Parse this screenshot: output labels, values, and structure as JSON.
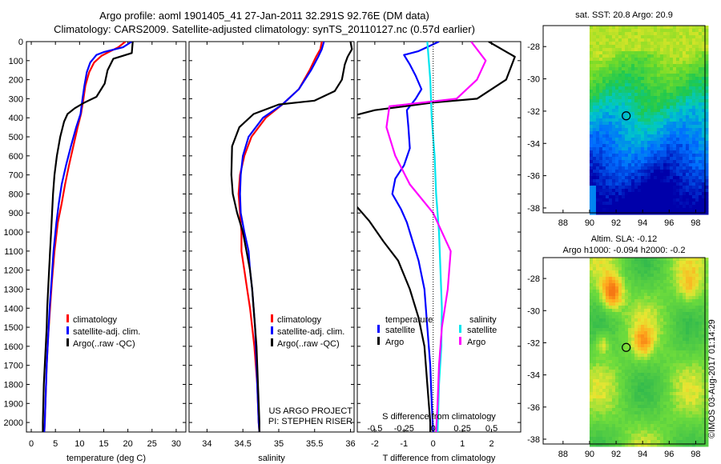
{
  "header": {
    "line1": "Argo profile: aoml 1901405_41 27-Jan-2011 32.291S 92.76E (DM data)",
    "line2": "Climatology: CARS2009. Satellite-adjusted climatology: synTS_20110127.nc (0.57d earlier)"
  },
  "colors": {
    "clim": "#ff0000",
    "sat": "#0000ff",
    "argo": "#000000",
    "sal_sat": "#00e5ee",
    "sal_argo": "#ff00ff"
  },
  "depth_axis": {
    "min": 0,
    "max": 2050,
    "ticks": [
      0,
      100,
      200,
      300,
      400,
      500,
      600,
      700,
      800,
      900,
      1000,
      1100,
      1200,
      1300,
      1400,
      1500,
      1600,
      1700,
      1800,
      1900,
      2000
    ]
  },
  "chart_data": [
    {
      "type": "line",
      "xlabel": "temperature (deg C)",
      "xlim": [
        -1,
        32
      ],
      "xticks": [
        0,
        5,
        10,
        15,
        20,
        25,
        30
      ],
      "legend": [
        "climatology",
        "satellite-adj. clim.",
        "Argo(..raw -QC)"
      ],
      "series": [
        {
          "name": "climatology",
          "color": "clim",
          "points": [
            [
              19.5,
              0
            ],
            [
              18,
              30
            ],
            [
              16,
              55
            ],
            [
              14.5,
              75
            ],
            [
              13,
              110
            ],
            [
              12,
              160
            ],
            [
              11.2,
              230
            ],
            [
              10.8,
              300
            ],
            [
              10.3,
              380
            ],
            [
              9.6,
              450
            ],
            [
              8.7,
              550
            ],
            [
              7.8,
              650
            ],
            [
              7,
              750
            ],
            [
              6.3,
              850
            ],
            [
              5.5,
              950
            ],
            [
              4.8,
              1100
            ],
            [
              4.3,
              1250
            ],
            [
              3.9,
              1400
            ],
            [
              3.5,
              1550
            ],
            [
              3.2,
              1700
            ],
            [
              3,
              1850
            ],
            [
              2.8,
              2000
            ],
            [
              2.7,
              2050
            ]
          ]
        },
        {
          "name": "satellite-adj. clim.",
          "color": "sat",
          "points": [
            [
              20.8,
              0
            ],
            [
              19,
              30
            ],
            [
              15,
              55
            ],
            [
              13.5,
              70
            ],
            [
              12.2,
              110
            ],
            [
              11.5,
              160
            ],
            [
              11,
              230
            ],
            [
              10.6,
              300
            ],
            [
              10.2,
              380
            ],
            [
              9.3,
              450
            ],
            [
              8.2,
              550
            ],
            [
              7.2,
              650
            ],
            [
              6.3,
              750
            ],
            [
              5.7,
              850
            ],
            [
              5.2,
              950
            ],
            [
              4.6,
              1100
            ],
            [
              4.2,
              1250
            ],
            [
              3.8,
              1400
            ],
            [
              3.5,
              1550
            ],
            [
              3.2,
              1700
            ],
            [
              3,
              1850
            ],
            [
              2.8,
              2000
            ],
            [
              2.7,
              2050
            ]
          ]
        },
        {
          "name": "Argo(..raw -QC)",
          "color": "argo",
          "points": [
            [
              21,
              0
            ],
            [
              20.8,
              60
            ],
            [
              17,
              90
            ],
            [
              15.8,
              150
            ],
            [
              15.2,
              220
            ],
            [
              13.5,
              290
            ],
            [
              11,
              320
            ],
            [
              9,
              350
            ],
            [
              7.5,
              380
            ],
            [
              6.8,
              420
            ],
            [
              6,
              500
            ],
            [
              5.3,
              600
            ],
            [
              4.8,
              700
            ],
            [
              4.5,
              800
            ],
            [
              4.3,
              900
            ],
            [
              4.1,
              1000
            ],
            [
              3.9,
              1100
            ],
            [
              3.7,
              1200
            ],
            [
              3.5,
              1300
            ],
            [
              3.3,
              1400
            ],
            [
              3.2,
              1500
            ],
            [
              3,
              1600
            ],
            [
              2.8,
              1700
            ],
            [
              2.6,
              1800
            ],
            [
              2.5,
              1900
            ],
            [
              2.4,
              2000
            ],
            [
              2.4,
              2050
            ]
          ]
        }
      ]
    },
    {
      "type": "line",
      "xlabel": "salinity",
      "xlim": [
        33.75,
        36.05
      ],
      "xticks": [
        34,
        34.5,
        35,
        35.5,
        36
      ],
      "xticklabels": [
        "34",
        "34.5",
        "35",
        "35.5",
        "36"
      ],
      "legend": [
        "climatology",
        "satellite-adj. clim.",
        "Argo(..raw -QC)"
      ],
      "series": [
        {
          "name": "climatology",
          "color": "clim",
          "points": [
            [
              35.6,
              0
            ],
            [
              35.58,
              40
            ],
            [
              35.52,
              80
            ],
            [
              35.43,
              150
            ],
            [
              35.28,
              250
            ],
            [
              35.05,
              330
            ],
            [
              34.82,
              400
            ],
            [
              34.62,
              500
            ],
            [
              34.52,
              600
            ],
            [
              34.46,
              700
            ],
            [
              34.44,
              800
            ],
            [
              34.46,
              900
            ],
            [
              34.48,
              1000
            ],
            [
              34.48,
              1100
            ],
            [
              34.52,
              1200
            ],
            [
              34.56,
              1300
            ],
            [
              34.6,
              1400
            ],
            [
              34.63,
              1500
            ],
            [
              34.66,
              1600
            ],
            [
              34.68,
              1700
            ],
            [
              34.7,
              1800
            ],
            [
              34.71,
              1900
            ],
            [
              34.72,
              2000
            ],
            [
              34.73,
              2050
            ]
          ]
        },
        {
          "name": "satellite-adj. clim.",
          "color": "sat",
          "points": [
            [
              35.63,
              0
            ],
            [
              35.6,
              40
            ],
            [
              35.55,
              80
            ],
            [
              35.45,
              150
            ],
            [
              35.28,
              250
            ],
            [
              35.05,
              330
            ],
            [
              34.78,
              400
            ],
            [
              34.58,
              500
            ],
            [
              34.5,
              600
            ],
            [
              34.47,
              700
            ],
            [
              34.46,
              800
            ],
            [
              34.47,
              900
            ],
            [
              34.52,
              1000
            ],
            [
              34.58,
              1100
            ],
            [
              34.6,
              1200
            ],
            [
              34.63,
              1300
            ],
            [
              34.65,
              1400
            ],
            [
              34.67,
              1500
            ],
            [
              34.68,
              1600
            ],
            [
              34.69,
              1700
            ],
            [
              34.7,
              1800
            ],
            [
              34.71,
              1900
            ],
            [
              34.72,
              2000
            ],
            [
              34.73,
              2050
            ]
          ]
        },
        {
          "name": "Argo(..raw -QC)",
          "color": "argo",
          "points": [
            [
              36,
              0
            ],
            [
              36.02,
              40
            ],
            [
              35.96,
              80
            ],
            [
              35.92,
              120
            ],
            [
              35.88,
              200
            ],
            [
              35.78,
              260
            ],
            [
              35.5,
              310
            ],
            [
              35,
              330
            ],
            [
              34.65,
              380
            ],
            [
              34.45,
              450
            ],
            [
              34.35,
              550
            ],
            [
              34.34,
              700
            ],
            [
              34.36,
              800
            ],
            [
              34.42,
              900
            ],
            [
              34.5,
              1000
            ],
            [
              34.55,
              1100
            ],
            [
              34.6,
              1200
            ],
            [
              34.63,
              1300
            ],
            [
              34.65,
              1400
            ],
            [
              34.67,
              1500
            ],
            [
              34.69,
              1600
            ],
            [
              34.7,
              1700
            ],
            [
              34.71,
              1800
            ],
            [
              34.72,
              1900
            ],
            [
              34.73,
              2000
            ],
            [
              34.73,
              2050
            ]
          ]
        }
      ]
    },
    {
      "type": "line",
      "xlabel": "T difference from climatology",
      "xlim": [
        -2.6,
        3.0
      ],
      "xticks": [
        -2,
        -1,
        0,
        1,
        2
      ],
      "xticklabels": [
        "-2",
        "-1",
        "0",
        "1",
        "2"
      ],
      "top_xlabel": "S difference from climatology",
      "top_xticks": [
        -0.5,
        -0.25,
        0,
        0.25,
        0.5
      ],
      "top_xticklabels": [
        "-0.5",
        "-0.25",
        "0",
        "0.25",
        "0.5"
      ],
      "legend_temperature": {
        "title": "temperature",
        "items": [
          "satellite",
          "Argo"
        ]
      },
      "legend_salinity": {
        "title": "salinity",
        "items": [
          "satellite",
          "Argo"
        ]
      },
      "series": [
        {
          "name": "temperature satellite",
          "color": "sat",
          "points": [
            [
              0.2,
              0
            ],
            [
              -0.5,
              50
            ],
            [
              -1.0,
              70
            ],
            [
              -0.8,
              120
            ],
            [
              -0.6,
              180
            ],
            [
              -0.4,
              250
            ],
            [
              -0.6,
              300
            ],
            [
              -0.9,
              360
            ],
            [
              -0.85,
              450
            ],
            [
              -0.8,
              560
            ],
            [
              -1.0,
              650
            ],
            [
              -1.3,
              720
            ],
            [
              -1.4,
              800
            ],
            [
              -1.1,
              880
            ],
            [
              -0.9,
              950
            ],
            [
              -0.7,
              1050
            ],
            [
              -0.5,
              1150
            ],
            [
              -0.3,
              1300
            ],
            [
              -0.2,
              1500
            ],
            [
              -0.1,
              1700
            ],
            [
              -0.05,
              1900
            ],
            [
              0,
              2050
            ]
          ]
        },
        {
          "name": "temperature Argo",
          "color": "argo",
          "points": [
            [
              1.9,
              0
            ],
            [
              2.8,
              80
            ],
            [
              2.5,
              200
            ],
            [
              1.5,
              300
            ],
            [
              0.0,
              320
            ],
            [
              -2.0,
              360
            ],
            [
              -3.0,
              400
            ]
          ]
        },
        {
          "name": "temperature Argo (deep)",
          "color": "argo",
          "points": [
            [
              -3.0,
              800
            ],
            [
              -2.2,
              940
            ],
            [
              -1.7,
              1050
            ],
            [
              -1.2,
              1150
            ],
            [
              -0.8,
              1300
            ],
            [
              -0.5,
              1450
            ],
            [
              -0.3,
              1600
            ],
            [
              -0.2,
              1800
            ],
            [
              -0.1,
              2000
            ],
            [
              -0.1,
              2050
            ]
          ]
        },
        {
          "name": "salinity satellite",
          "color": "sal_sat",
          "points": [
            [
              -0.2,
              0
            ],
            [
              -0.1,
              200
            ],
            [
              -0.05,
              400
            ],
            [
              0.05,
              600
            ],
            [
              0.1,
              800
            ],
            [
              0.2,
              1000
            ],
            [
              0.25,
              1200
            ],
            [
              0.3,
              1400
            ],
            [
              0.28,
              1600
            ],
            [
              0.2,
              1800
            ],
            [
              0.15,
              2050
            ]
          ]
        },
        {
          "name": "salinity Argo",
          "color": "sal_argo",
          "points": [
            [
              1.3,
              0
            ],
            [
              1.8,
              100
            ],
            [
              1.5,
              200
            ],
            [
              0.8,
              300
            ],
            [
              -1.5,
              340
            ],
            [
              -1.6,
              450
            ],
            [
              -1.3,
              600
            ],
            [
              -0.8,
              750
            ],
            [
              0.0,
              900
            ],
            [
              0.6,
              1100
            ],
            [
              0.5,
              1300
            ],
            [
              0.3,
              1500
            ],
            [
              0.2,
              1700
            ],
            [
              0.15,
              1900
            ],
            [
              0.1,
              2050
            ]
          ]
        }
      ]
    }
  ],
  "project": {
    "line1": "US ARGO PROJECT",
    "line2": "PI: STEPHEN RISER"
  },
  "maps": [
    {
      "title": "sat. SST: 20.8  Argo: 20.9",
      "xticks": [
        "88",
        "90",
        "92",
        "94",
        "96",
        "98"
      ],
      "yticks": [
        "-28",
        "-30",
        "-32",
        "-34",
        "-36",
        "-38"
      ],
      "xlim": [
        86.5,
        98.7
      ],
      "ylim": [
        -38.3,
        -26.7
      ],
      "data_lon_start": 90,
      "marker": [
        92.76,
        -32.29
      ]
    },
    {
      "title1": "Altim. SLA: -0.12",
      "title2": "Argo h1000: -0.094  h2000: -0.2",
      "xticks": [
        "88",
        "90",
        "92",
        "94",
        "96",
        "98"
      ],
      "yticks": [
        "-28",
        "-30",
        "-32",
        "-34",
        "-36",
        "-38"
      ],
      "xlim": [
        86.5,
        98.7
      ],
      "ylim": [
        -38.3,
        -26.7
      ],
      "data_lon_start": 90,
      "marker": [
        92.76,
        -32.29
      ]
    }
  ],
  "credit": "©IMOS 03-Aug-2017 01:14:29"
}
